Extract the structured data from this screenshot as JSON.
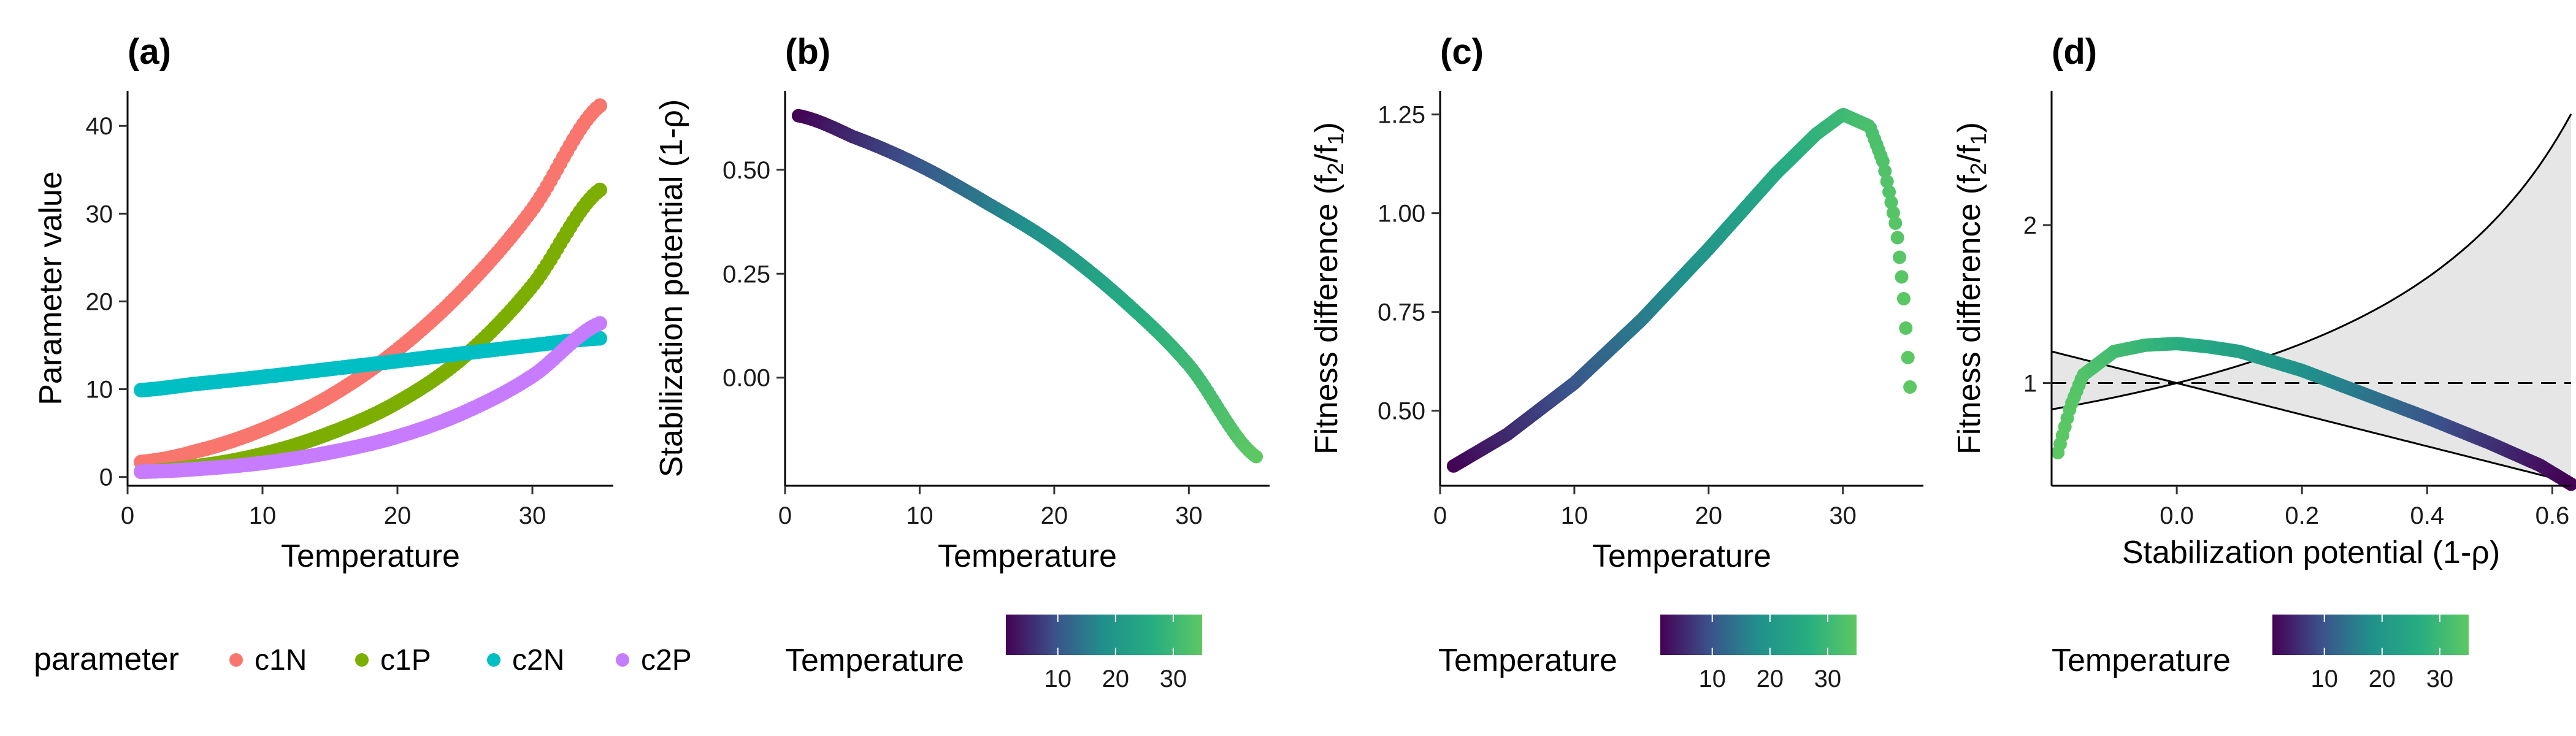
{
  "chart_data": [
    {
      "panel": "(a)",
      "type": "scatter",
      "xlabel": "Temperature",
      "ylabel": "Parameter value",
      "xlim": [
        0,
        36
      ],
      "ylim": [
        -1,
        44
      ],
      "xticks": [
        0,
        10,
        20,
        30
      ],
      "yticks": [
        0,
        10,
        20,
        30,
        40
      ],
      "grid": false,
      "legend": {
        "title": "parameter",
        "placement": "bottom",
        "entries": [
          "c1N",
          "c1P",
          "c2N",
          "c2P"
        ]
      },
      "x_range": [
        1,
        35
      ],
      "series": [
        {
          "name": "c1N",
          "color": "#F8766D",
          "x": [
            1,
            5,
            10,
            15,
            20,
            25,
            30,
            35
          ],
          "y": [
            1.7,
            2.9,
            5.4,
            9.2,
            14.5,
            21.5,
            30.5,
            42.3
          ]
        },
        {
          "name": "c1P",
          "color": "#7CAE00",
          "x": [
            1,
            5,
            10,
            15,
            20,
            25,
            30,
            35
          ],
          "y": [
            0.6,
            1.2,
            2.6,
            5.0,
            8.5,
            13.8,
            21.8,
            32.7
          ]
        },
        {
          "name": "c2N",
          "color": "#00BFC4",
          "x": [
            1,
            5,
            10,
            15,
            20,
            25,
            30,
            35
          ],
          "y": [
            9.9,
            10.6,
            11.4,
            12.3,
            13.2,
            14.1,
            15.0,
            15.8
          ]
        },
        {
          "name": "c2P",
          "color": "#C77CFF",
          "x": [
            1,
            5,
            10,
            15,
            20,
            25,
            30,
            35
          ],
          "y": [
            0.6,
            0.9,
            1.6,
            2.8,
            4.6,
            7.4,
            11.5,
            17.5
          ]
        }
      ]
    },
    {
      "panel": "(b)",
      "type": "scatter",
      "xlabel": "Temperature",
      "ylabel": "Stabilization potential (1-ρ)",
      "xlim": [
        0,
        36
      ],
      "ylim": [
        -0.26,
        0.69
      ],
      "xticks": [
        0,
        10,
        20,
        30
      ],
      "yticks": [
        0.0,
        0.25,
        0.5
      ],
      "ytick_labels": [
        "0.00",
        "0.25",
        "0.50"
      ],
      "grid": false,
      "color_by": "Temperature",
      "x": [
        1,
        5,
        10,
        15,
        20,
        25,
        30,
        35
      ],
      "y": [
        0.63,
        0.58,
        0.51,
        0.42,
        0.32,
        0.19,
        0.03,
        -0.19
      ]
    },
    {
      "panel": "(c)",
      "type": "scatter",
      "xlabel": "Temperature",
      "ylabel": "Fitness difference (f2/f1)",
      "xlim": [
        0,
        36
      ],
      "ylim": [
        0.31,
        1.31
      ],
      "xticks": [
        0,
        10,
        20,
        30
      ],
      "yticks": [
        0.5,
        0.75,
        1.0,
        1.25
      ],
      "ytick_labels": [
        "0.50",
        "0.75",
        "1.00",
        "1.25"
      ],
      "grid": false,
      "color_by": "Temperature",
      "x": [
        1,
        5,
        10,
        15,
        20,
        25,
        28,
        30,
        32,
        33,
        34,
        34.5,
        35
      ],
      "y": [
        0.36,
        0.44,
        0.57,
        0.73,
        0.91,
        1.1,
        1.2,
        1.25,
        1.22,
        1.13,
        0.96,
        0.8,
        0.56
      ]
    },
    {
      "panel": "(d)",
      "type": "scatter",
      "xlabel": "Stabilization potential (1-ρ)",
      "ylabel": "Fitness difference (f2/f1)",
      "xlim": [
        -0.2,
        0.63
      ],
      "ylim": [
        0.35,
        2.85
      ],
      "xticks": [
        0.0,
        0.2,
        0.4,
        0.6
      ],
      "xtick_labels": [
        "0.0",
        "0.2",
        "0.4",
        "0.6"
      ],
      "yticks": [
        1,
        2
      ],
      "grid": false,
      "reference_line": {
        "y": 1,
        "style": "dashed"
      },
      "coexistence_bounds": {
        "upper": "1/(1-x)",
        "lower": "1-x",
        "shaded": true
      },
      "color_by": "Temperature",
      "x": [
        -0.19,
        -0.17,
        -0.15,
        -0.1,
        -0.05,
        0.0,
        0.05,
        0.1,
        0.2,
        0.3,
        0.4,
        0.5,
        0.58,
        0.63
      ],
      "y": [
        0.56,
        0.85,
        1.05,
        1.2,
        1.24,
        1.25,
        1.23,
        1.2,
        1.08,
        0.93,
        0.78,
        0.62,
        0.48,
        0.36
      ]
    }
  ],
  "colorbar": {
    "title": "Temperature",
    "range": [
      1,
      35
    ],
    "ticks": [
      10,
      20,
      30
    ],
    "colors": [
      "#440154",
      "#3B528B",
      "#21908C",
      "#27AD81",
      "#5DC863"
    ]
  }
}
